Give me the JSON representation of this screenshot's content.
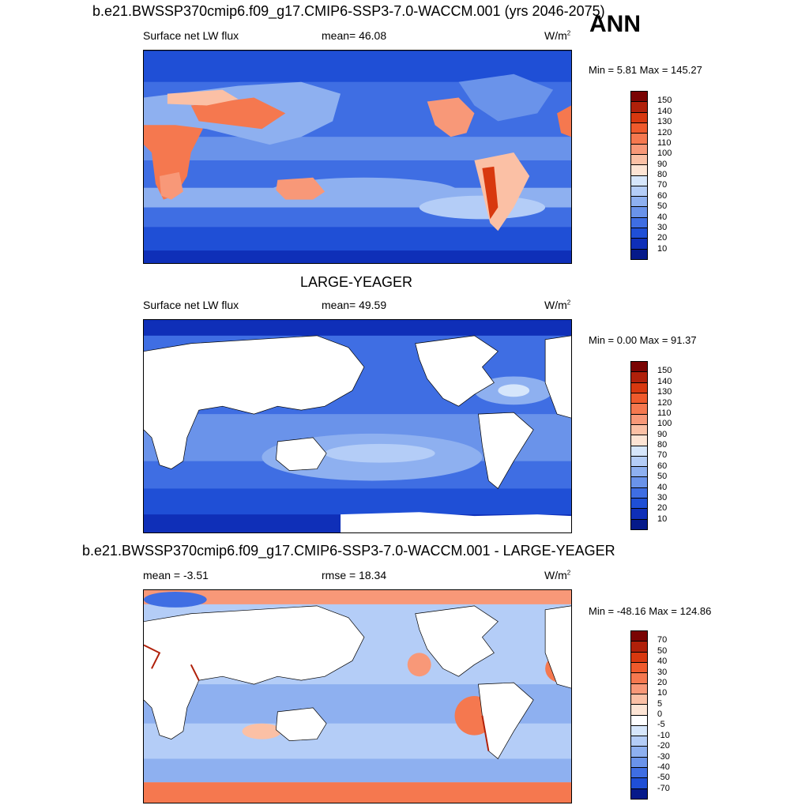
{
  "season": "ANN",
  "panel1": {
    "title": "b.e21.BWSSP370cmip6.f09_g17.CMIP6-SSP3-7.0-WACCM.001 (yrs 2046-2075)",
    "variable": "Surface net LW flux",
    "stat": "mean=  46.08",
    "units": "W/m",
    "units_sup": "2",
    "minmax": "Min =   5.81 Max = 145.27",
    "levels": [
      "150",
      "140",
      "130",
      "120",
      "110",
      "100",
      "90",
      "80",
      "70",
      "60",
      "50",
      "40",
      "30",
      "20",
      "10"
    ]
  },
  "panel2": {
    "title": "LARGE-YEAGER",
    "variable": "Surface net LW flux",
    "stat": "mean=  49.59",
    "units": "W/m",
    "units_sup": "2",
    "minmax": "Min =   0.00 Max =  91.37",
    "levels": [
      "150",
      "140",
      "130",
      "120",
      "110",
      "100",
      "90",
      "80",
      "70",
      "60",
      "50",
      "40",
      "30",
      "20",
      "10"
    ]
  },
  "panel3": {
    "title": "b.e21.BWSSP370cmip6.f09_g17.CMIP6-SSP3-7.0-WACCM.001 - LARGE-YEAGER",
    "stat_left": "mean =  -3.51",
    "stat_mid": "rmse =  18.34",
    "units": "W/m",
    "units_sup": "2",
    "minmax": "Min = -48.16 Max = 124.86",
    "levels": [
      "70",
      "50",
      "40",
      "30",
      "20",
      "10",
      "5",
      "0",
      "-5",
      "-10",
      "-20",
      "-30",
      "-40",
      "-50",
      "-70"
    ]
  },
  "colors": {
    "abs_scale": [
      "#7a0403",
      "#b0200a",
      "#d8380f",
      "#ef5a2c",
      "#f5784f",
      "#f89878",
      "#fbc0a5",
      "#fde4d4",
      "#d6e6fb",
      "#b4cdf7",
      "#8eb0f0",
      "#6a93ea",
      "#3f6ee3",
      "#1f4fd6",
      "#0f2fb8",
      "#061a8a"
    ],
    "diff_scale": [
      "#7a0403",
      "#b0200a",
      "#d8380f",
      "#ef5a2c",
      "#f5784f",
      "#f89878",
      "#fbc0a5",
      "#fde4d4",
      "#ffffff",
      "#d6e6fb",
      "#b4cdf7",
      "#8eb0f0",
      "#6a93ea",
      "#3f6ee3",
      "#1f4fd6",
      "#061a8a"
    ]
  }
}
